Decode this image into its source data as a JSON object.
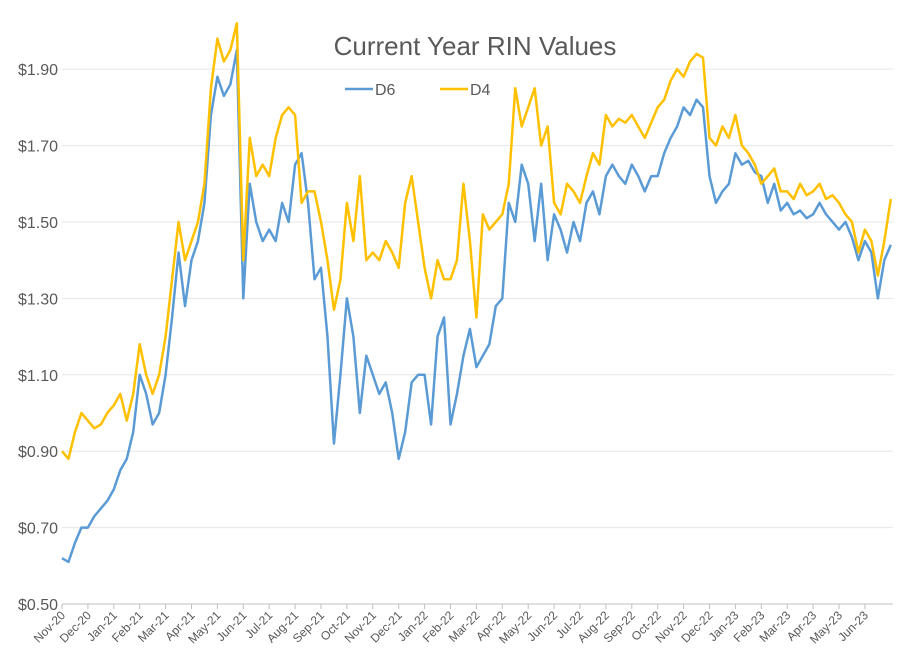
{
  "chart_data": {
    "type": "line",
    "title": "Current Year RIN Values",
    "categories": [
      "Nov-20",
      null,
      null,
      null,
      "Dec-20",
      null,
      null,
      null,
      "Jan-21",
      null,
      null,
      null,
      "Feb-21",
      null,
      null,
      null,
      "Mar-21",
      null,
      null,
      null,
      "Apr-21",
      null,
      null,
      null,
      "May-21",
      null,
      null,
      null,
      "Jun-21",
      null,
      null,
      null,
      "Jul-21",
      null,
      null,
      null,
      "Aug-21",
      null,
      null,
      null,
      "Sep-21",
      null,
      null,
      null,
      "Oct-21",
      null,
      null,
      null,
      "Nov-21",
      null,
      null,
      null,
      "Dec-21",
      null,
      null,
      null,
      "Jan-22",
      null,
      null,
      null,
      "Feb-22",
      null,
      null,
      null,
      "Mar-22",
      null,
      null,
      null,
      "Apr-22",
      null,
      null,
      null,
      "May-22",
      null,
      null,
      null,
      "Jun-22",
      null,
      null,
      null,
      "Jul-22",
      null,
      null,
      null,
      "Aug-22",
      null,
      null,
      null,
      "Sep-22",
      null,
      null,
      null,
      "Oct-22",
      null,
      null,
      null,
      "Nov-22",
      null,
      null,
      null,
      "Dec-22",
      null,
      null,
      null,
      "Jan-23",
      null,
      null,
      null,
      "Feb-23",
      null,
      null,
      null,
      "Mar-23",
      null,
      null,
      null,
      "Apr-23",
      null,
      null,
      null,
      "May-23",
      null,
      null,
      null,
      "Jun-23",
      null,
      null,
      null,
      null
    ],
    "series": [
      {
        "name": "D6",
        "color": "#5b9bd5",
        "values": [
          0.62,
          0.61,
          0.66,
          0.7,
          0.7,
          0.73,
          0.75,
          0.77,
          0.8,
          0.85,
          0.88,
          0.95,
          1.1,
          1.05,
          0.97,
          1.0,
          1.1,
          1.25,
          1.42,
          1.28,
          1.4,
          1.45,
          1.55,
          1.78,
          1.88,
          1.83,
          1.86,
          1.95,
          1.3,
          1.6,
          1.5,
          1.45,
          1.48,
          1.45,
          1.55,
          1.5,
          1.65,
          1.68,
          1.55,
          1.35,
          1.38,
          1.2,
          0.92,
          1.1,
          1.3,
          1.2,
          1.0,
          1.15,
          1.1,
          1.05,
          1.08,
          1.0,
          0.88,
          0.95,
          1.08,
          1.1,
          1.1,
          0.97,
          1.2,
          1.25,
          0.97,
          1.05,
          1.15,
          1.22,
          1.12,
          1.15,
          1.18,
          1.28,
          1.3,
          1.55,
          1.5,
          1.65,
          1.6,
          1.45,
          1.6,
          1.4,
          1.52,
          1.48,
          1.42,
          1.5,
          1.45,
          1.55,
          1.58,
          1.52,
          1.62,
          1.65,
          1.62,
          1.6,
          1.65,
          1.62,
          1.58,
          1.62,
          1.62,
          1.68,
          1.72,
          1.75,
          1.8,
          1.78,
          1.82,
          1.8,
          1.62,
          1.55,
          1.58,
          1.6,
          1.68,
          1.65,
          1.66,
          1.63,
          1.62,
          1.55,
          1.6,
          1.53,
          1.55,
          1.52,
          1.53,
          1.51,
          1.52,
          1.55,
          1.52,
          1.5,
          1.48,
          1.5,
          1.46,
          1.4,
          1.45,
          1.42,
          1.3,
          1.4,
          1.44
        ]
      },
      {
        "name": "D4",
        "color": "#ffc000",
        "values": [
          0.9,
          0.88,
          0.95,
          1.0,
          0.98,
          0.96,
          0.97,
          1.0,
          1.02,
          1.05,
          0.98,
          1.05,
          1.18,
          1.1,
          1.05,
          1.1,
          1.2,
          1.35,
          1.5,
          1.4,
          1.45,
          1.5,
          1.6,
          1.85,
          1.98,
          1.92,
          1.95,
          2.02,
          1.4,
          1.72,
          1.62,
          1.65,
          1.62,
          1.72,
          1.78,
          1.8,
          1.78,
          1.55,
          1.58,
          1.58,
          1.5,
          1.4,
          1.27,
          1.35,
          1.55,
          1.45,
          1.62,
          1.4,
          1.42,
          1.4,
          1.45,
          1.42,
          1.38,
          1.55,
          1.62,
          1.5,
          1.38,
          1.3,
          1.4,
          1.35,
          1.35,
          1.4,
          1.6,
          1.45,
          1.25,
          1.52,
          1.48,
          1.5,
          1.52,
          1.6,
          1.85,
          1.75,
          1.8,
          1.85,
          1.7,
          1.75,
          1.55,
          1.52,
          1.6,
          1.58,
          1.55,
          1.62,
          1.68,
          1.65,
          1.78,
          1.75,
          1.77,
          1.76,
          1.78,
          1.75,
          1.72,
          1.76,
          1.8,
          1.82,
          1.87,
          1.9,
          1.88,
          1.92,
          1.94,
          1.93,
          1.72,
          1.7,
          1.75,
          1.72,
          1.78,
          1.7,
          1.68,
          1.65,
          1.6,
          1.62,
          1.64,
          1.58,
          1.58,
          1.56,
          1.6,
          1.57,
          1.58,
          1.6,
          1.56,
          1.57,
          1.55,
          1.52,
          1.5,
          1.42,
          1.48,
          1.45,
          1.36,
          1.45,
          1.56
        ]
      }
    ],
    "ylim": [
      0.5,
      2.03
    ],
    "yticks": [
      {
        "value": 0.5,
        "label": "$0.50"
      },
      {
        "value": 0.7,
        "label": "$0.70"
      },
      {
        "value": 0.9,
        "label": "$0.90"
      },
      {
        "value": 1.1,
        "label": "$1.10"
      },
      {
        "value": 1.3,
        "label": "$1.30"
      },
      {
        "value": 1.5,
        "label": "$1.50"
      },
      {
        "value": 1.7,
        "label": "$1.70"
      },
      {
        "value": 1.9,
        "label": "$1.90"
      }
    ],
    "grid": true,
    "legend": "top"
  }
}
